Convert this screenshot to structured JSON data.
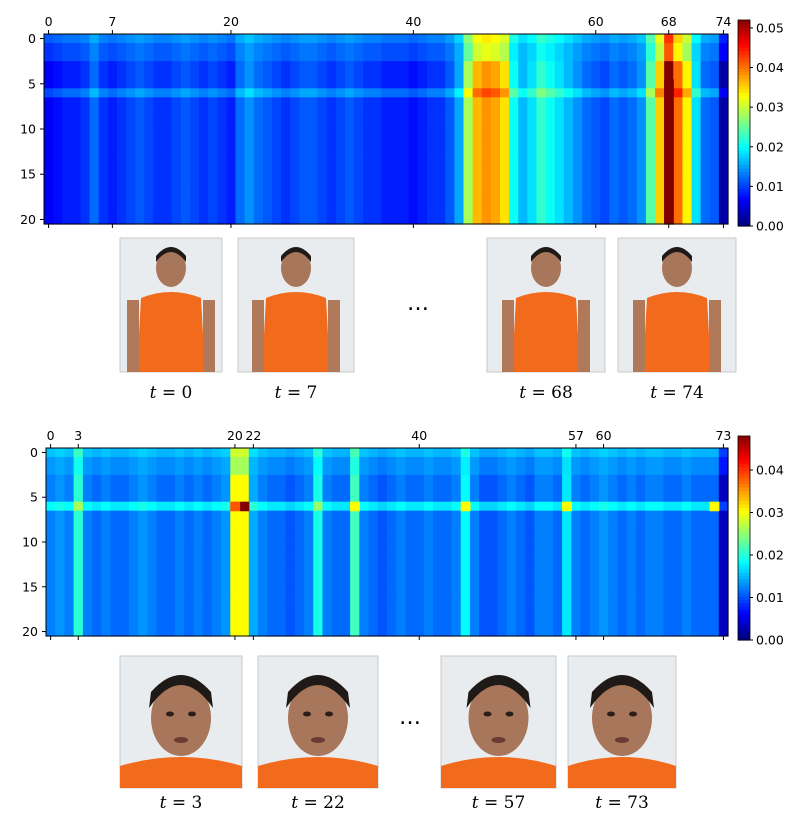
{
  "chart_data": [
    {
      "type": "heatmap",
      "x_range": [
        0,
        74
      ],
      "y_range": [
        0,
        20
      ],
      "top_ticks": [
        "0",
        "7",
        "20",
        "40",
        "60",
        "68",
        "74"
      ],
      "y_ticks": [
        "0",
        "5",
        "10",
        "15",
        "20"
      ],
      "colorbar": {
        "min": 0.0,
        "max": 0.052,
        "ticks": [
          "0.00",
          "0.01",
          "0.02",
          "0.03",
          "0.04",
          "0.05"
        ],
        "colormap": "jet"
      },
      "column_base": [
        [
          0,
          0.006
        ],
        [
          1,
          0.007
        ],
        [
          2,
          0.008
        ],
        [
          3,
          0.008
        ],
        [
          4,
          0.009
        ],
        [
          5,
          0.012
        ],
        [
          6,
          0.009
        ],
        [
          7,
          0.008
        ],
        [
          8,
          0.009
        ],
        [
          9,
          0.01
        ],
        [
          10,
          0.011
        ],
        [
          11,
          0.01
        ],
        [
          12,
          0.009
        ],
        [
          13,
          0.009
        ],
        [
          14,
          0.01
        ],
        [
          15,
          0.011
        ],
        [
          16,
          0.01
        ],
        [
          17,
          0.009
        ],
        [
          18,
          0.01
        ],
        [
          19,
          0.009
        ],
        [
          20,
          0.008
        ],
        [
          21,
          0.012
        ],
        [
          22,
          0.014
        ],
        [
          23,
          0.012
        ],
        [
          24,
          0.011
        ],
        [
          25,
          0.01
        ],
        [
          26,
          0.009
        ],
        [
          27,
          0.01
        ],
        [
          28,
          0.011
        ],
        [
          29,
          0.011
        ],
        [
          30,
          0.01
        ],
        [
          31,
          0.009
        ],
        [
          32,
          0.01
        ],
        [
          33,
          0.011
        ],
        [
          34,
          0.01
        ],
        [
          35,
          0.009
        ],
        [
          36,
          0.009
        ],
        [
          37,
          0.008
        ],
        [
          38,
          0.008
        ],
        [
          39,
          0.008
        ],
        [
          40,
          0.007
        ],
        [
          41,
          0.008
        ],
        [
          42,
          0.009
        ],
        [
          43,
          0.009
        ],
        [
          44,
          0.011
        ],
        [
          45,
          0.015
        ],
        [
          46,
          0.028
        ],
        [
          47,
          0.036
        ],
        [
          48,
          0.038
        ],
        [
          49,
          0.037
        ],
        [
          50,
          0.034
        ],
        [
          51,
          0.02
        ],
        [
          52,
          0.016
        ],
        [
          53,
          0.018
        ],
        [
          54,
          0.022
        ],
        [
          55,
          0.02
        ],
        [
          56,
          0.018
        ],
        [
          57,
          0.016
        ],
        [
          58,
          0.014
        ],
        [
          59,
          0.012
        ],
        [
          60,
          0.011
        ],
        [
          61,
          0.01
        ],
        [
          62,
          0.012
        ],
        [
          63,
          0.011
        ],
        [
          64,
          0.012
        ],
        [
          65,
          0.014
        ],
        [
          66,
          0.024
        ],
        [
          67,
          0.035
        ],
        [
          68,
          0.052
        ],
        [
          69,
          0.04
        ],
        [
          70,
          0.033
        ],
        [
          71,
          0.018
        ],
        [
          72,
          0.012
        ],
        [
          73,
          0.011
        ],
        [
          74,
          0.002
        ]
      ],
      "top_rows_value": 0.016,
      "row6_highlight": 0.02,
      "frames": [
        {
          "label_var": "t",
          "label_op": "=",
          "label_num": "0"
        },
        {
          "label_var": "t",
          "label_op": "=",
          "label_num": "7"
        },
        {
          "label_var": "t",
          "label_op": "=",
          "label_num": "68"
        },
        {
          "label_var": "t",
          "label_op": "=",
          "label_num": "74"
        }
      ],
      "ellipsis": "…"
    },
    {
      "type": "heatmap",
      "x_range": [
        0,
        73
      ],
      "y_range": [
        0,
        20
      ],
      "top_ticks": [
        "0",
        "3",
        "20",
        "22",
        "40",
        "57",
        "60",
        "73"
      ],
      "y_ticks": [
        "0",
        "5",
        "10",
        "15",
        "20"
      ],
      "colorbar": {
        "min": 0.0,
        "max": 0.048,
        "ticks": [
          "0.00",
          "0.01",
          "0.02",
          "0.03",
          "0.04"
        ],
        "colormap": "jet"
      },
      "column_base": [
        [
          0,
          0.012
        ],
        [
          1,
          0.013
        ],
        [
          2,
          0.012
        ],
        [
          3,
          0.02
        ],
        [
          4,
          0.012
        ],
        [
          5,
          0.011
        ],
        [
          6,
          0.012
        ],
        [
          7,
          0.011
        ],
        [
          8,
          0.011
        ],
        [
          9,
          0.012
        ],
        [
          10,
          0.013
        ],
        [
          11,
          0.012
        ],
        [
          12,
          0.011
        ],
        [
          13,
          0.011
        ],
        [
          14,
          0.012
        ],
        [
          15,
          0.011
        ],
        [
          16,
          0.012
        ],
        [
          17,
          0.011
        ],
        [
          18,
          0.012
        ],
        [
          19,
          0.013
        ],
        [
          20,
          0.03
        ],
        [
          21,
          0.03
        ],
        [
          22,
          0.014
        ],
        [
          23,
          0.012
        ],
        [
          24,
          0.011
        ],
        [
          25,
          0.011
        ],
        [
          26,
          0.01
        ],
        [
          27,
          0.011
        ],
        [
          28,
          0.012
        ],
        [
          29,
          0.019
        ],
        [
          30,
          0.012
        ],
        [
          31,
          0.011
        ],
        [
          32,
          0.011
        ],
        [
          33,
          0.021
        ],
        [
          34,
          0.012
        ],
        [
          35,
          0.011
        ],
        [
          36,
          0.01
        ],
        [
          37,
          0.011
        ],
        [
          38,
          0.012
        ],
        [
          39,
          0.011
        ],
        [
          40,
          0.011
        ],
        [
          41,
          0.012
        ],
        [
          42,
          0.011
        ],
        [
          43,
          0.011
        ],
        [
          44,
          0.012
        ],
        [
          45,
          0.018
        ],
        [
          46,
          0.012
        ],
        [
          47,
          0.01
        ],
        [
          48,
          0.01
        ],
        [
          49,
          0.011
        ],
        [
          50,
          0.012
        ],
        [
          51,
          0.011
        ],
        [
          52,
          0.01
        ],
        [
          53,
          0.012
        ],
        [
          54,
          0.012
        ],
        [
          55,
          0.011
        ],
        [
          56,
          0.017
        ],
        [
          57,
          0.012
        ],
        [
          58,
          0.011
        ],
        [
          59,
          0.012
        ],
        [
          60,
          0.013
        ],
        [
          61,
          0.012
        ],
        [
          62,
          0.011
        ],
        [
          63,
          0.012
        ],
        [
          64,
          0.011
        ],
        [
          65,
          0.012
        ],
        [
          66,
          0.012
        ],
        [
          67,
          0.011
        ],
        [
          68,
          0.011
        ],
        [
          69,
          0.012
        ],
        [
          70,
          0.011
        ],
        [
          71,
          0.011
        ],
        [
          72,
          0.011
        ],
        [
          73,
          0.003
        ]
      ],
      "top_rows_value": 0.016,
      "row6_highlight": 0.04,
      "frames": [
        {
          "label_var": "t",
          "label_op": "=",
          "label_num": "3"
        },
        {
          "label_var": "t",
          "label_op": "=",
          "label_num": "22"
        },
        {
          "label_var": "t",
          "label_op": "=",
          "label_num": "57"
        },
        {
          "label_var": "t",
          "label_op": "=",
          "label_num": "73"
        }
      ],
      "ellipsis": "…"
    }
  ]
}
